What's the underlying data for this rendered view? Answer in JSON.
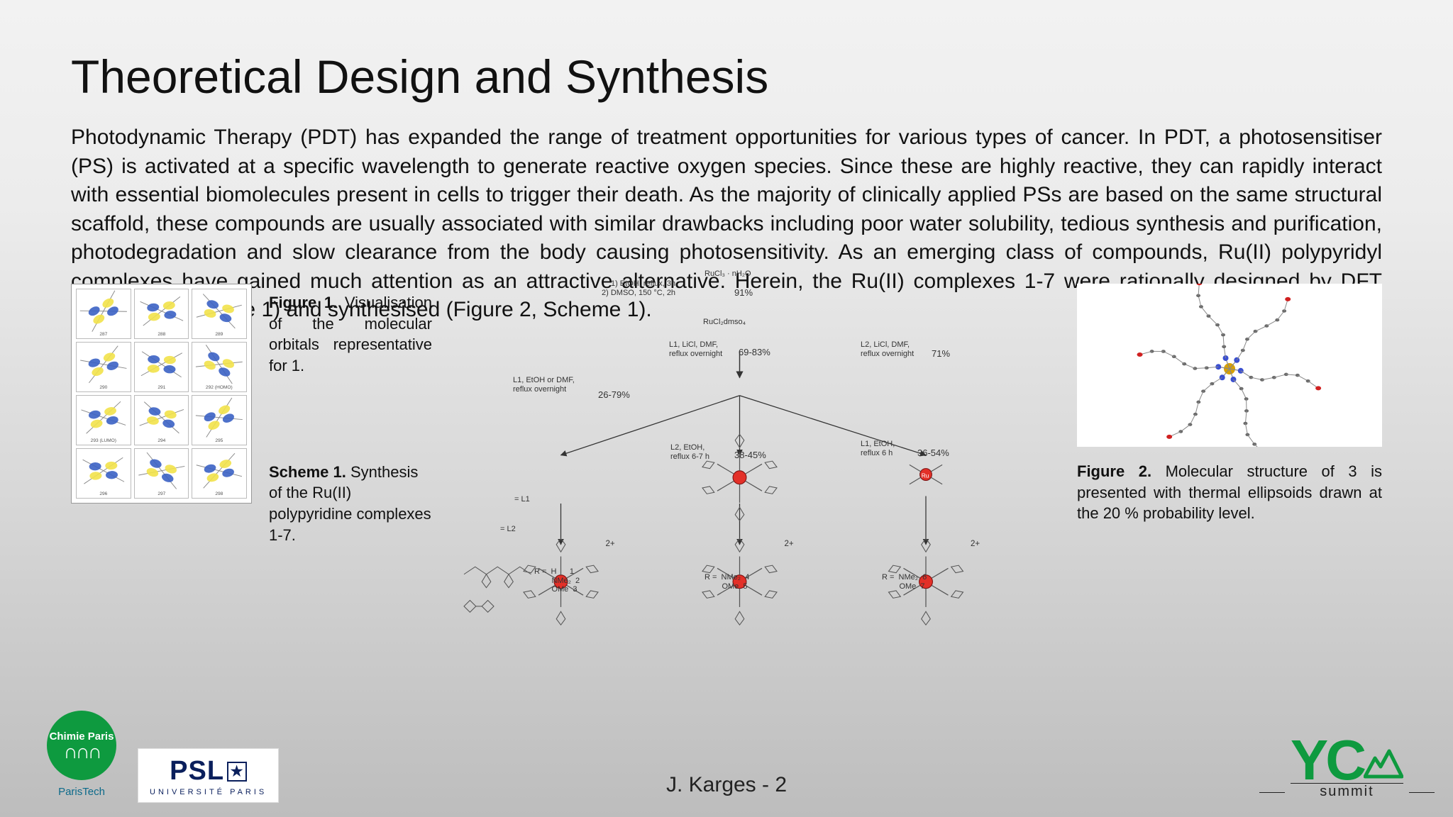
{
  "page": {
    "title": "Theoretical Design and Synthesis",
    "body": "Photodynamic Therapy (PDT) has expanded the range of treatment opportunities for various types of cancer. In PDT, a photosensitiser (PS) is activated at a specific wavelength to generate reactive oxygen species. Since these are highly reactive, they can rapidly interact with essential biomolecules present in cells to trigger their death. As the majority of clinically applied PSs are based on the same structural scaffold, these compounds are usually associated with similar drawbacks including poor water solubility, tedious synthesis and purification, photodegradation and slow clearance from the body causing photosensitivity. As an emerging class of compounds, Ru(II) polypyridyl complexes have gained much attention as an attractive alternative. Herein, the Ru(II) complexes 1-7 were rationally designed by DFT calculations (Figure 1) and synthesised (Figure 2, Scheme 1).",
    "footer_label": "J. Karges - 2"
  },
  "captions": {
    "fig1_lead": "Figure 1.",
    "fig1_text": " Visualisation of the molecular orbitals representative for 1.",
    "scheme_lead": "Scheme 1.",
    "scheme_text": " Synthesis of the Ru(II) polypyridine complexes 1-7.",
    "fig2_lead": "Figure 2.",
    "fig2_text": " Molecular structure of 3 is presented with thermal ellipsoids drawn at the 20 % probability level."
  },
  "fig1": {
    "type": "orbital_grid",
    "cols": 3,
    "rows": 4,
    "cell_ids": [
      "287",
      "288",
      "289",
      "290",
      "291",
      "292 (HOMO)",
      "293 (LUMO)",
      "294",
      "295",
      "296",
      "297",
      "298"
    ],
    "lobe_colors": [
      "#3b62c4",
      "#f2e24a"
    ],
    "background": "#ffffff",
    "border": "#999999"
  },
  "scheme": {
    "type": "reaction_scheme",
    "start_label": "RuCl₃ · nH₂O",
    "step1_cond": "1) EtOH, reflux, 3h\n2) DMSO, 150 °C, 2h",
    "step1_yield": "91%",
    "intermediate": "RuCl₂dmso₄",
    "branches": [
      {
        "cond": "L1, EtOH or DMF,\nreflux overnight",
        "yield": "26-79%"
      },
      {
        "cond": "L1, LiCl, DMF,\nreflux overnight",
        "yield": "69-83%"
      },
      {
        "cond": "L2, LiCl, DMF,\nreflux overnight",
        "yield": "71%"
      }
    ],
    "second_row": [
      {
        "cond": "L2, EtOH,\nreflux 6-7 h",
        "yield": "38-45%"
      },
      {
        "cond": "L1, EtOH,\nreflux 6 h",
        "yield": "36-54%"
      }
    ],
    "ligand_labels": {
      "l1": "= L1",
      "l2": "= L2"
    },
    "product_key": [
      {
        "left": "R =",
        "lines": [
          "H      1",
          "NMe₂  2",
          "OMe  3"
        ]
      },
      {
        "left": "R =",
        "lines": [
          "NMe₂  4",
          "OMe  5"
        ]
      },
      {
        "left": "R =",
        "lines": [
          "NMe₂  6",
          "OMe  7"
        ]
      }
    ],
    "ru_color": "#e33028",
    "bond_color": "#555555",
    "charge": "2+"
  },
  "fig2": {
    "type": "ortep",
    "background": "#ffffff",
    "central_atom_color": "#d8a000",
    "n_color": "#3a4fd0",
    "o_color": "#d02020",
    "c_color": "#6b6b6b",
    "bond_color": "#888888"
  },
  "logos": {
    "chimie": {
      "top": "Chimie Paris",
      "sub": "ParisTech",
      "bg": "#0e9a3f",
      "fg": "#ffffff"
    },
    "psl": {
      "main": "PSL",
      "sub": "UNIVERSITÉ PARIS",
      "color": "#0a1f5c"
    },
    "yc": {
      "main": "YC",
      "sub": "summit",
      "color": "#0e9a3f"
    }
  },
  "colors": {
    "page_bg_top": "#f2f2f2",
    "page_bg_bottom": "#bdbdbd",
    "text": "#111111"
  },
  "fonts": {
    "title_pt": 50,
    "body_pt": 23,
    "caption_pt": 17
  }
}
